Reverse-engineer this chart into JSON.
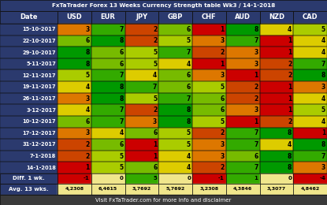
{
  "title": "FxTaTrader Forex 13 Weeks Currency Strength table Wk3 / 14-1-2018",
  "footer": "Visit FxTaTrader.com for more info and disclaimer",
  "columns": [
    "Date",
    "USD",
    "EUR",
    "JPY",
    "GBP",
    "CHF",
    "AUD",
    "NZD",
    "CAD"
  ],
  "dates": [
    "15-10-2017",
    "22-10-2017",
    "29-10-2017",
    "5-11-2017",
    "12-11-2017",
    "19-11-2017",
    "26-11-2017",
    "3-12-2017",
    "10-12-2017",
    "17-12-2017",
    "31-12-2017",
    "7-1-2018",
    "14-1-2018"
  ],
  "values": [
    [
      3,
      7,
      2,
      6,
      1,
      8,
      4,
      5
    ],
    [
      6,
      8,
      2,
      5,
      3,
      7,
      1,
      4
    ],
    [
      8,
      6,
      5,
      7,
      2,
      3,
      1,
      4
    ],
    [
      8,
      6,
      5,
      4,
      1,
      3,
      2,
      7
    ],
    [
      5,
      7,
      4,
      6,
      3,
      1,
      2,
      8
    ],
    [
      4,
      8,
      7,
      6,
      5,
      2,
      1,
      3
    ],
    [
      3,
      8,
      5,
      7,
      6,
      2,
      1,
      4
    ],
    [
      4,
      7,
      2,
      8,
      6,
      3,
      1,
      5
    ],
    [
      6,
      7,
      3,
      8,
      5,
      1,
      2,
      4
    ],
    [
      3,
      4,
      6,
      5,
      2,
      7,
      8,
      1
    ],
    [
      2,
      6,
      1,
      5,
      3,
      7,
      4,
      8
    ],
    [
      2,
      5,
      1,
      4,
      3,
      6,
      8,
      7
    ],
    [
      1,
      5,
      6,
      4,
      2,
      7,
      8,
      3
    ]
  ],
  "diff": [
    -1,
    0,
    5,
    0,
    -1,
    1,
    0,
    -4
  ],
  "avg_str": [
    "4,2308",
    "6,4615",
    "3,7692",
    "5,7692",
    "3,2308",
    "4,3846",
    "3,3077",
    "4,8462"
  ],
  "diff_str": [
    "-1",
    "0",
    "5",
    "0",
    "-1",
    "1",
    "0",
    "-4"
  ],
  "title_bg": "#2b3a6e",
  "title_text": "#ffffff",
  "footer_bg": "#3a3a3a",
  "footer_text": "#ffffff",
  "header_bg": "#2b3a6e",
  "header_text": "#ffffff",
  "date_col_bg": "#2b3a6e",
  "date_col_text": "#ffffff",
  "diff_label_bg": "#2b3a6e",
  "diff_label_text": "#ffffff",
  "avg_label_bg": "#2b3a6e",
  "avg_label_text": "#ffffff",
  "diff_bg_neutral": "#f0e68c",
  "avg_bg": "#f0e68c",
  "value_colors": {
    "1": "#cc0000",
    "2": "#cc4400",
    "3": "#dd7700",
    "4": "#ddcc00",
    "5": "#aacc00",
    "6": "#77bb00",
    "7": "#33aa00",
    "8": "#009900"
  },
  "diff_pos_color": "#33aa00",
  "diff_neg_color": "#cc0000"
}
